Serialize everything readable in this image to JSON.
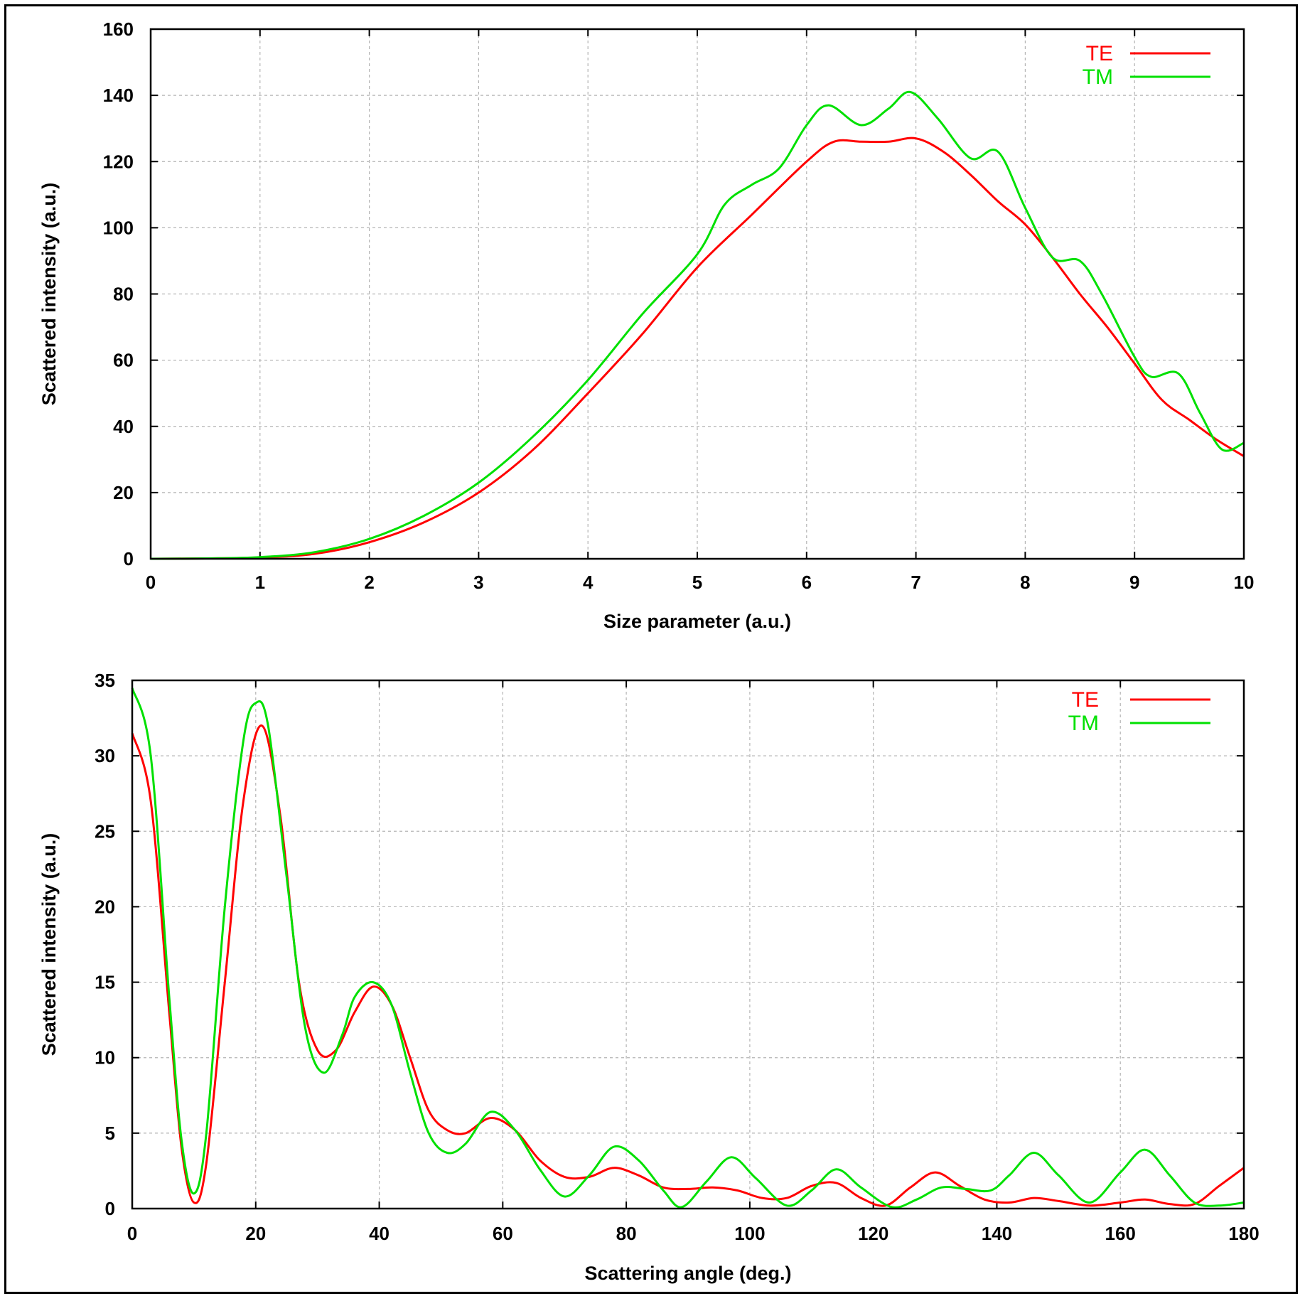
{
  "chart_data": [
    {
      "type": "line",
      "xlabel": "Size parameter (a.u.)",
      "ylabel": "Scattered intensity (a.u.)",
      "xlim": [
        0,
        10
      ],
      "ylim": [
        0,
        160
      ],
      "xticks": [
        0,
        1,
        2,
        3,
        4,
        5,
        6,
        7,
        8,
        9,
        10
      ],
      "yticks": [
        0,
        20,
        40,
        60,
        80,
        100,
        120,
        140,
        160
      ],
      "grid": true,
      "legend_position": "top-right",
      "series": [
        {
          "name": "TE",
          "color": "#ff0000",
          "x": [
            0,
            0.5,
            1.0,
            1.5,
            2.0,
            2.5,
            3.0,
            3.5,
            4.0,
            4.5,
            5.0,
            5.5,
            6.0,
            6.25,
            6.5,
            6.75,
            7.0,
            7.25,
            7.5,
            7.75,
            8.0,
            8.25,
            8.5,
            8.75,
            9.0,
            9.25,
            9.5,
            9.75,
            10.0
          ],
          "y": [
            0,
            0.1,
            0.4,
            1.5,
            5,
            11,
            20,
            33,
            50,
            68,
            88,
            104,
            120,
            126,
            126,
            126,
            127,
            123,
            116,
            108,
            101,
            91,
            80,
            70,
            59,
            48,
            42,
            36,
            31
          ]
        },
        {
          "name": "TM",
          "color": "#00e000",
          "x": [
            0,
            0.5,
            1.0,
            1.5,
            2.0,
            2.5,
            3.0,
            3.5,
            4.0,
            4.5,
            5.0,
            5.25,
            5.5,
            5.75,
            6.0,
            6.2,
            6.5,
            6.75,
            6.95,
            7.2,
            7.5,
            7.75,
            8.0,
            8.25,
            8.5,
            8.7,
            9.0,
            9.15,
            9.4,
            9.6,
            9.8,
            10.0
          ],
          "y": [
            0,
            0.1,
            0.5,
            2,
            6,
            13,
            23,
            37,
            54,
            74,
            92,
            107,
            113,
            118,
            131,
            137,
            131,
            136,
            141,
            133,
            121,
            123,
            106,
            91,
            90,
            80,
            61,
            55,
            56,
            44,
            33,
            35
          ]
        }
      ]
    },
    {
      "type": "line",
      "xlabel": "Scattering angle (deg.)",
      "ylabel": "Scattered intensity (a.u.)",
      "xlim": [
        0,
        180
      ],
      "ylim": [
        0,
        35
      ],
      "xticks": [
        0,
        20,
        40,
        60,
        80,
        100,
        120,
        140,
        160,
        180
      ],
      "yticks": [
        0,
        5,
        10,
        15,
        20,
        25,
        30,
        35
      ],
      "grid": true,
      "legend_position": "top-right",
      "series": [
        {
          "name": "TE",
          "color": "#ff0000",
          "x": [
            0,
            3,
            6,
            8,
            10,
            12,
            15,
            18,
            21,
            24,
            27,
            30,
            33,
            36,
            39,
            42,
            45,
            48,
            51,
            54,
            58,
            62,
            66,
            70,
            74,
            78,
            82,
            86,
            90,
            94,
            98,
            102,
            106,
            110,
            114,
            118,
            122,
            126,
            130,
            134,
            138,
            142,
            146,
            150,
            155,
            160,
            164,
            168,
            172,
            176,
            180
          ],
          "y": [
            31.5,
            27,
            13,
            4,
            0.4,
            3,
            15,
            27,
            32,
            26,
            15,
            10.5,
            10.5,
            13,
            14.7,
            13.5,
            10,
            6.5,
            5.2,
            5,
            6,
            5.2,
            3.2,
            2.1,
            2.1,
            2.7,
            2.2,
            1.4,
            1.3,
            1.4,
            1.2,
            0.7,
            0.7,
            1.5,
            1.7,
            0.7,
            0.2,
            1.4,
            2.4,
            1.5,
            0.6,
            0.4,
            0.7,
            0.5,
            0.2,
            0.4,
            0.6,
            0.3,
            0.3,
            1.5,
            2.7
          ]
        },
        {
          "name": "TM",
          "color": "#00e000",
          "x": [
            0,
            3,
            6,
            8,
            10,
            12,
            15,
            18,
            20,
            22,
            25,
            28,
            31,
            34,
            36,
            39,
            42,
            45,
            48,
            51,
            54,
            58,
            62,
            66,
            70,
            74,
            78,
            82,
            86,
            89,
            93,
            97,
            101,
            106,
            110,
            114,
            118,
            123,
            127,
            131,
            135,
            139,
            142,
            146,
            150,
            155,
            160,
            164,
            168,
            172,
            176,
            180
          ],
          "y": [
            34.5,
            30,
            14,
            4.5,
            1,
            5,
            20,
            31,
            33.5,
            32,
            22,
            12,
            9,
            11.5,
            14,
            15,
            13.5,
            9,
            5,
            3.7,
            4.3,
            6.4,
            5.2,
            2.6,
            0.8,
            2.2,
            4.1,
            3.2,
            1.2,
            0.1,
            1.8,
            3.4,
            2,
            0.2,
            1.2,
            2.6,
            1.4,
            0.1,
            0.6,
            1.4,
            1.3,
            1.2,
            2.2,
            3.7,
            2.2,
            0.4,
            2.4,
            3.9,
            2.2,
            0.4,
            0.2,
            0.4
          ]
        }
      ]
    }
  ]
}
